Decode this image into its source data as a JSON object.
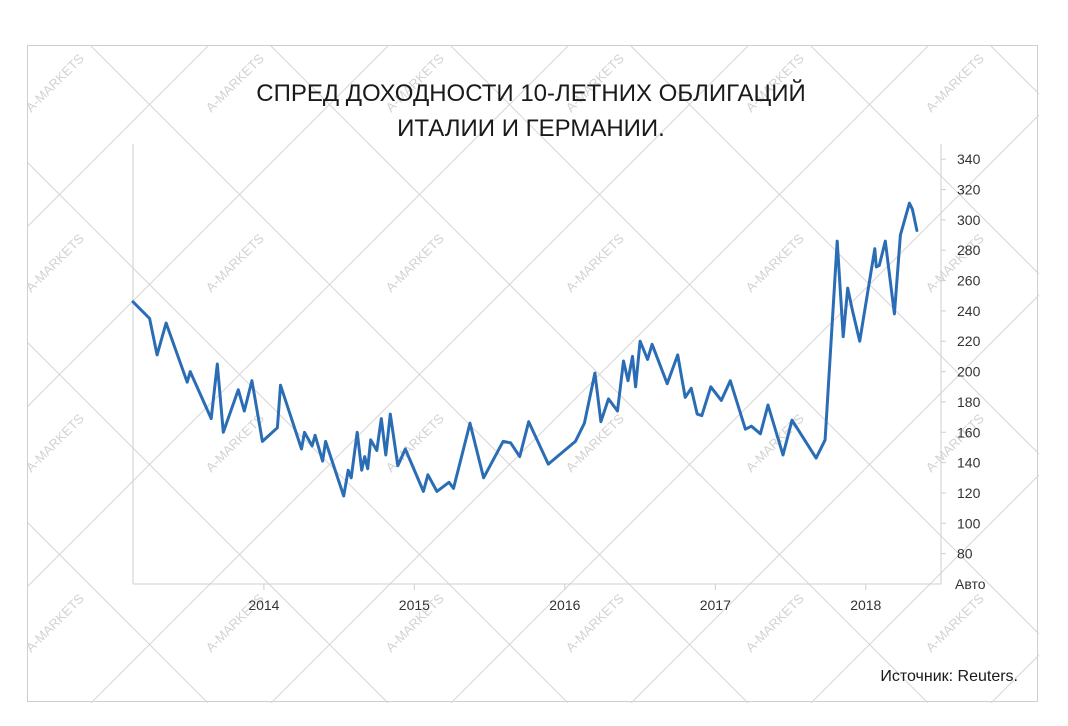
{
  "watermark": {
    "text": "A-MARKETS"
  },
  "source": "Источник: Reuters.",
  "chart_data": {
    "type": "line",
    "title_lines": [
      "СПРЕД ДОХОДНОСТИ 10-ЛЕТНИХ ОБЛИГАЦИЙ",
      "ИТАЛИИ И ГЕРМАНИИ."
    ],
    "xlabel": "",
    "ylabel": "",
    "y_unit_label": "Авто",
    "ylim": [
      60,
      350
    ],
    "yticks": [
      80,
      100,
      120,
      140,
      160,
      180,
      200,
      220,
      240,
      260,
      280,
      300,
      320,
      340
    ],
    "xlim": [
      2013.13,
      2018.5
    ],
    "xticks": [
      {
        "value": 2014,
        "label": "2014"
      },
      {
        "value": 2015,
        "label": "2015"
      },
      {
        "value": 2016,
        "label": "2016"
      },
      {
        "value": 2017,
        "label": "2017"
      },
      {
        "value": 2018,
        "label": "2018"
      }
    ],
    "grid": false,
    "legend": "none",
    "colors": {
      "line": "#2a6db5"
    },
    "series": [
      {
        "values": [
          [
            2013.13,
            246
          ],
          [
            2013.24,
            235
          ],
          [
            2013.29,
            211
          ],
          [
            2013.35,
            232
          ],
          [
            2013.49,
            193
          ],
          [
            2013.51,
            200
          ],
          [
            2013.65,
            169
          ],
          [
            2013.69,
            205
          ],
          [
            2013.73,
            160
          ],
          [
            2013.83,
            188
          ],
          [
            2013.87,
            174
          ],
          [
            2013.92,
            194
          ],
          [
            2013.99,
            154
          ],
          [
            2014.09,
            163
          ],
          [
            2014.11,
            191
          ],
          [
            2014.25,
            149
          ],
          [
            2014.27,
            160
          ],
          [
            2014.32,
            151
          ],
          [
            2014.34,
            158
          ],
          [
            2014.39,
            141
          ],
          [
            2014.41,
            154
          ],
          [
            2014.43,
            148
          ],
          [
            2014.53,
            118
          ],
          [
            2014.56,
            135
          ],
          [
            2014.58,
            130
          ],
          [
            2014.62,
            160
          ],
          [
            2014.65,
            135
          ],
          [
            2014.67,
            144
          ],
          [
            2014.69,
            136
          ],
          [
            2014.71,
            155
          ],
          [
            2014.75,
            148
          ],
          [
            2014.78,
            169
          ],
          [
            2014.81,
            145
          ],
          [
            2014.84,
            172
          ],
          [
            2014.89,
            138
          ],
          [
            2014.94,
            149
          ],
          [
            2015.06,
            121
          ],
          [
            2015.09,
            132
          ],
          [
            2015.15,
            121
          ],
          [
            2015.23,
            127
          ],
          [
            2015.26,
            123
          ],
          [
            2015.37,
            166
          ],
          [
            2015.46,
            130
          ],
          [
            2015.59,
            154
          ],
          [
            2015.64,
            153
          ],
          [
            2015.7,
            144
          ],
          [
            2015.76,
            167
          ],
          [
            2015.89,
            139
          ],
          [
            2016.07,
            154
          ],
          [
            2016.13,
            166
          ],
          [
            2016.2,
            199
          ],
          [
            2016.24,
            167
          ],
          [
            2016.29,
            182
          ],
          [
            2016.35,
            174
          ],
          [
            2016.39,
            207
          ],
          [
            2016.42,
            194
          ],
          [
            2016.45,
            210
          ],
          [
            2016.47,
            190
          ],
          [
            2016.5,
            220
          ],
          [
            2016.55,
            208
          ],
          [
            2016.58,
            218
          ],
          [
            2016.68,
            192
          ],
          [
            2016.75,
            211
          ],
          [
            2016.8,
            183
          ],
          [
            2016.84,
            189
          ],
          [
            2016.88,
            172
          ],
          [
            2016.91,
            171
          ],
          [
            2016.97,
            190
          ],
          [
            2017.04,
            181
          ],
          [
            2017.1,
            194
          ],
          [
            2017.2,
            162
          ],
          [
            2017.24,
            164
          ],
          [
            2017.3,
            159
          ],
          [
            2017.35,
            178
          ],
          [
            2017.45,
            145
          ],
          [
            2017.51,
            168
          ],
          [
            2017.67,
            143
          ],
          [
            2017.73,
            155
          ],
          [
            2017.81,
            286
          ],
          [
            2017.85,
            223
          ],
          [
            2017.88,
            255
          ],
          [
            2017.91,
            241
          ],
          [
            2017.96,
            220
          ],
          [
            2018.06,
            281
          ],
          [
            2018.07,
            269
          ],
          [
            2018.09,
            270
          ],
          [
            2018.13,
            286
          ],
          [
            2018.19,
            238
          ],
          [
            2018.23,
            290
          ],
          [
            2018.29,
            311
          ],
          [
            2018.31,
            307
          ],
          [
            2018.34,
            293
          ]
        ]
      }
    ]
  }
}
